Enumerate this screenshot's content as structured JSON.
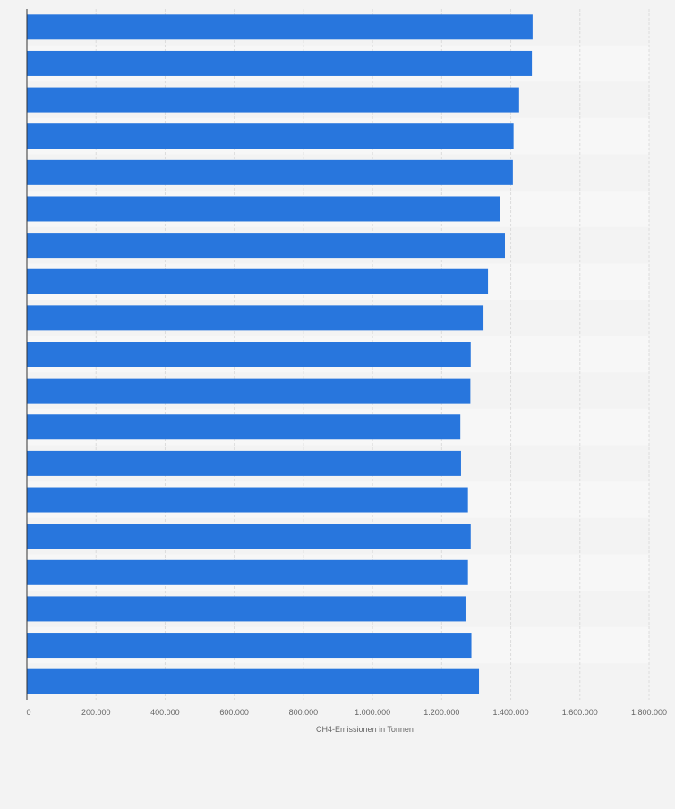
{
  "chart_data": {
    "type": "bar",
    "orientation": "horizontal",
    "xlabel": "CH4-Emissionen in Tonnen",
    "ylabel": "",
    "xlim": [
      0,
      1800000
    ],
    "x_ticks": [
      0,
      200000,
      400000,
      600000,
      800000,
      1000000,
      1200000,
      1400000,
      1600000,
      1800000
    ],
    "x_tick_labels": [
      "0",
      "200.000",
      "400.000",
      "600.000",
      "800.000",
      "1.000.000",
      "1.200.000",
      "1.400.000",
      "1.600.000",
      "1.800.000"
    ],
    "grid": true,
    "values": [
      1463000,
      1461000,
      1424000,
      1408000,
      1406000,
      1370000,
      1383000,
      1334000,
      1321000,
      1284000,
      1283000,
      1254000,
      1256000,
      1276000,
      1284000,
      1276000,
      1269000,
      1286000,
      1308000
    ],
    "bar_color": "#2876dd"
  }
}
